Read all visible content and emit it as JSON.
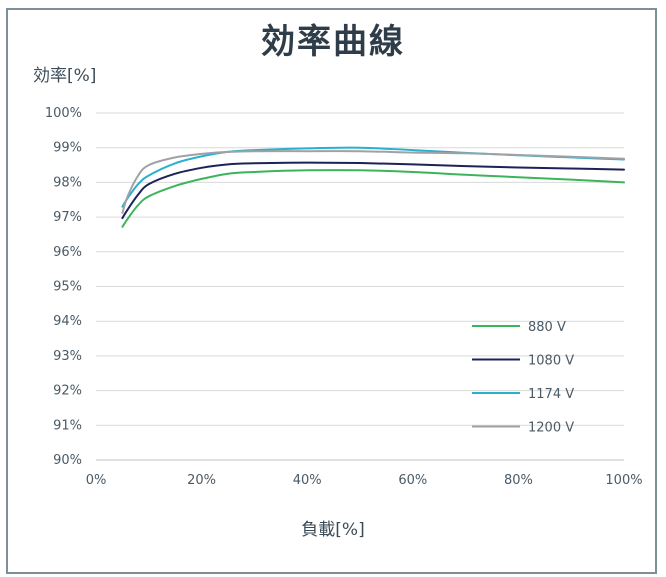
{
  "chart_data": {
    "type": "line",
    "title": "効率曲線",
    "ylabel": "効率[%]",
    "xlabel": "負載[%]",
    "xlim": [
      0,
      100
    ],
    "ylim": [
      90,
      100
    ],
    "x_ticks": [
      "0%",
      "20%",
      "40%",
      "60%",
      "80%",
      "100%"
    ],
    "y_ticks": [
      "90%",
      "91%",
      "92%",
      "93%",
      "94%",
      "95%",
      "96%",
      "97%",
      "98%",
      "99%",
      "100%"
    ],
    "grid": true,
    "legend_position": "right",
    "series": [
      {
        "name": "880 V",
        "color": "#3cb55a",
        "points": [
          [
            5,
            96.72
          ],
          [
            6,
            96.95
          ],
          [
            8,
            97.35
          ],
          [
            10,
            97.6
          ],
          [
            15,
            97.9
          ],
          [
            20,
            98.1
          ],
          [
            25,
            98.25
          ],
          [
            30,
            98.3
          ],
          [
            40,
            98.35
          ],
          [
            50,
            98.35
          ],
          [
            60,
            98.3
          ],
          [
            70,
            98.22
          ],
          [
            80,
            98.15
          ],
          [
            90,
            98.08
          ],
          [
            100,
            98.0
          ]
        ]
      },
      {
        "name": "1080 V",
        "color": "#1c2357",
        "points": [
          [
            5,
            96.97
          ],
          [
            6,
            97.22
          ],
          [
            8,
            97.65
          ],
          [
            10,
            97.95
          ],
          [
            15,
            98.25
          ],
          [
            20,
            98.42
          ],
          [
            25,
            98.52
          ],
          [
            30,
            98.55
          ],
          [
            40,
            98.57
          ],
          [
            50,
            98.56
          ],
          [
            60,
            98.52
          ],
          [
            70,
            98.47
          ],
          [
            80,
            98.43
          ],
          [
            90,
            98.4
          ],
          [
            100,
            98.37
          ]
        ]
      },
      {
        "name": "1174 V",
        "color": "#2ab0cf",
        "points": [
          [
            5,
            97.3
          ],
          [
            6,
            97.55
          ],
          [
            8,
            97.95
          ],
          [
            10,
            98.2
          ],
          [
            15,
            98.55
          ],
          [
            20,
            98.75
          ],
          [
            25,
            98.88
          ],
          [
            30,
            98.93
          ],
          [
            40,
            98.98
          ],
          [
            50,
            99.0
          ],
          [
            60,
            98.93
          ],
          [
            70,
            98.85
          ],
          [
            80,
            98.78
          ],
          [
            90,
            98.72
          ],
          [
            100,
            98.66
          ]
        ]
      },
      {
        "name": "1200 V",
        "color": "#9ea2a6",
        "points": [
          [
            5,
            97.12
          ],
          [
            6,
            97.6
          ],
          [
            8,
            98.2
          ],
          [
            10,
            98.5
          ],
          [
            15,
            98.72
          ],
          [
            20,
            98.82
          ],
          [
            25,
            98.88
          ],
          [
            30,
            98.9
          ],
          [
            40,
            98.9
          ],
          [
            50,
            98.9
          ],
          [
            60,
            98.86
          ],
          [
            70,
            98.84
          ],
          [
            80,
            98.79
          ],
          [
            90,
            98.74
          ],
          [
            100,
            98.68
          ]
        ]
      }
    ]
  }
}
